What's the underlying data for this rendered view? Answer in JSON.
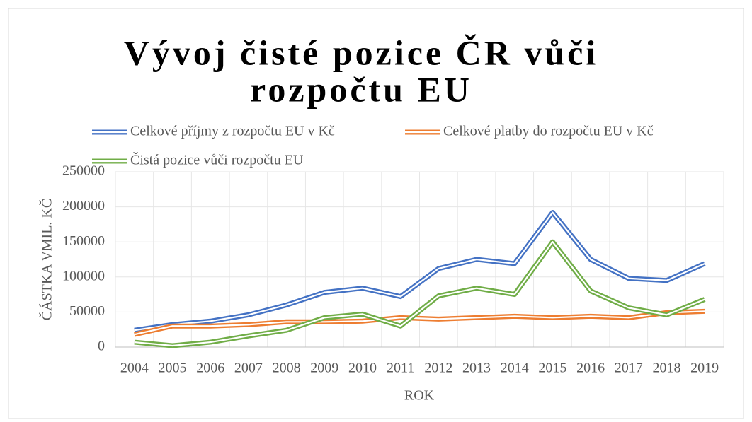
{
  "chart_data": {
    "type": "line",
    "title": [
      "Vývoj čisté pozice ČR vůči",
      "rozpočtu EU"
    ],
    "x_label": "ROK",
    "y_label": "ČÁSTKA VMIL. KČ",
    "categories": [
      "2004",
      "2005",
      "2006",
      "2007",
      "2008",
      "2009",
      "2010",
      "2011",
      "2012",
      "2013",
      "2014",
      "2015",
      "2016",
      "2017",
      "2018",
      "2019"
    ],
    "series": [
      {
        "name": "Celkové příjmy z rozpočtu EU v Kč",
        "color": "#4472c4",
        "values": [
          24000,
          32000,
          37000,
          46000,
          60000,
          78000,
          84000,
          72000,
          112000,
          125000,
          119000,
          192000,
          125000,
          98000,
          95000,
          119000
        ]
      },
      {
        "name": "Celkové platby do rozpočtu EU v Kč",
        "color": "#ed7d31",
        "values": [
          18000,
          30000,
          30000,
          32000,
          36000,
          36000,
          37000,
          42000,
          40000,
          42000,
          44000,
          42000,
          44000,
          42000,
          49000,
          51000
        ]
      },
      {
        "name": "Čistá pozice vůči rozpočtu EU",
        "color": "#70ad47",
        "values": [
          7000,
          2000,
          7000,
          16000,
          24000,
          42000,
          47000,
          30000,
          73000,
          84000,
          75000,
          150000,
          80000,
          56000,
          46000,
          68000
        ]
      }
    ],
    "ylim": [
      0,
      250000
    ],
    "yticks": [
      0,
      50000,
      100000,
      150000,
      200000,
      250000
    ],
    "grid": true
  }
}
